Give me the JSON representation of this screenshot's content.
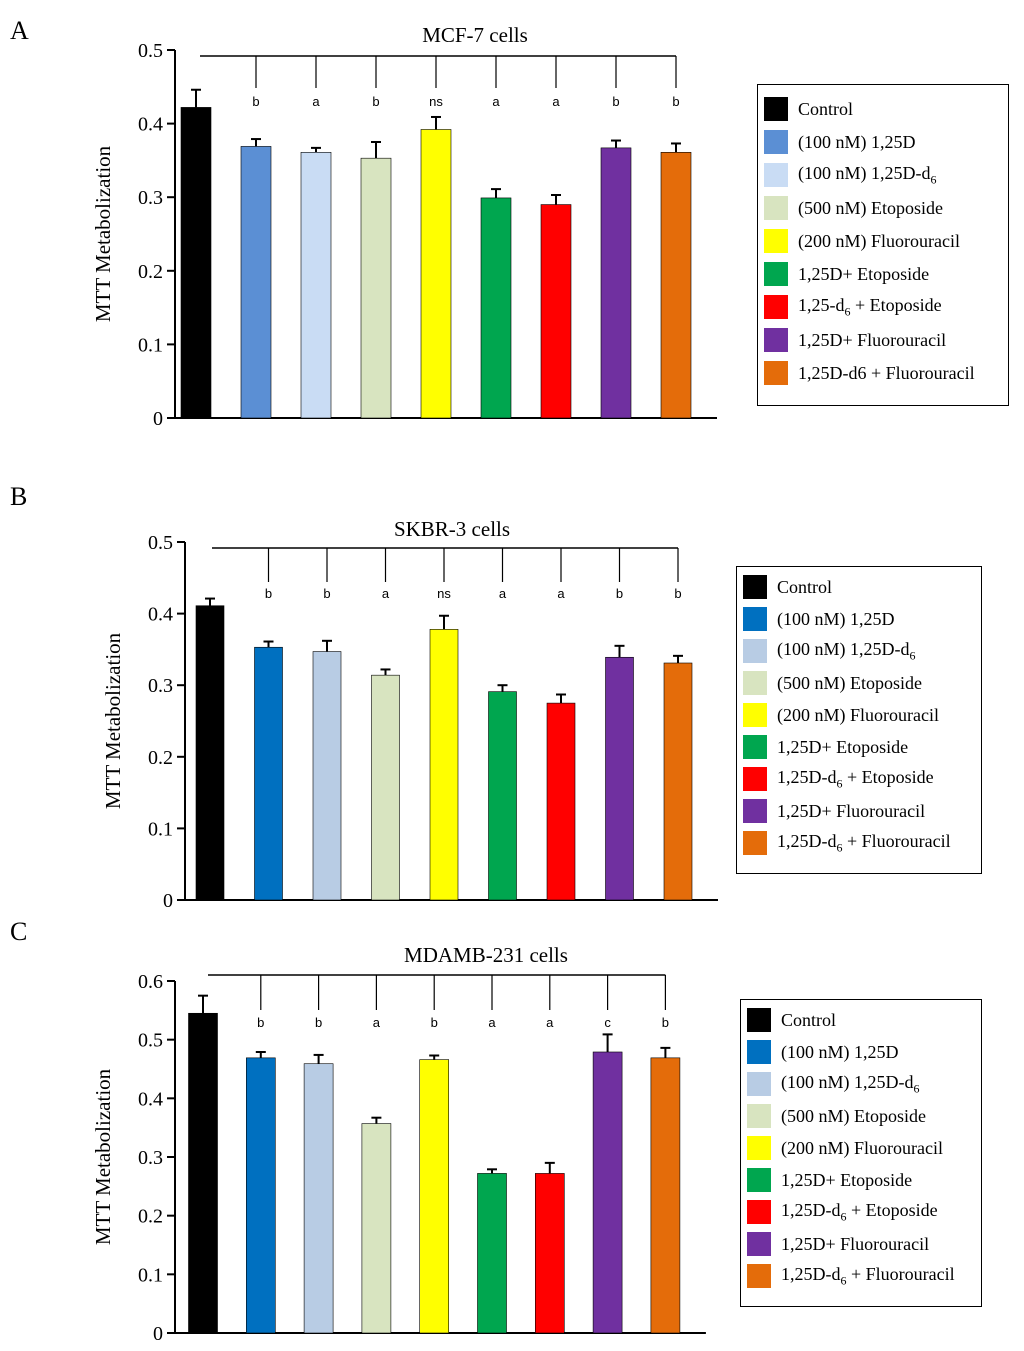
{
  "legend_colors": [
    "#000000",
    "#5B8FD4",
    "#C9DCF4",
    "#D8E4C0",
    "#FFFF00",
    "#00A64F",
    "#FF0000",
    "#7030A0",
    "#E46C0A"
  ],
  "chart_data": [
    {
      "type": "bar",
      "panel": "A",
      "title": "MCF-7 cells",
      "ylabel": "MTT Metabolization",
      "xlabel": "",
      "ylim": [
        0,
        0.5
      ],
      "yticks": [
        "0",
        "0.1",
        "0.2",
        "0.3",
        "0.4",
        "0.5"
      ],
      "categories": [
        "Control",
        "(100 nM) 1,25D",
        "(100 nM) 1,25D-d6",
        "(500 nM) Etoposide",
        "(200 nM) Fluorouracil",
        "1,25D+ Etoposide",
        "1,25-d6 + Etoposide",
        "1,25D+ Fluorouracil",
        "1,25D-d6 + Fluorouracil"
      ],
      "values": [
        0.422,
        0.369,
        0.361,
        0.353,
        0.392,
        0.299,
        0.29,
        0.367,
        0.361
      ],
      "errors": [
        0.024,
        0.01,
        0.006,
        0.022,
        0.017,
        0.012,
        0.013,
        0.01,
        0.012
      ],
      "significance": [
        "",
        "b",
        "a",
        "b",
        "ns",
        "a",
        "a",
        "b",
        "b"
      ],
      "colors": [
        "#000000",
        "#5B8FD4",
        "#C9DCF4",
        "#D8E4C0",
        "#FFFF00",
        "#00A64F",
        "#FF0000",
        "#7030A0",
        "#E46C0A"
      ],
      "legend": [
        {
          "main": "Control",
          "sub": "",
          "tail": ""
        },
        {
          "main": "(100 nM) 1,25D",
          "sub": "",
          "tail": ""
        },
        {
          "main": "(100 nM) 1,25D-d",
          "sub": "6",
          "tail": ""
        },
        {
          "main": "(500 nM) Etoposide",
          "sub": "",
          "tail": ""
        },
        {
          "main": "(200 nM) Fluorouracil",
          "sub": "",
          "tail": ""
        },
        {
          "main": "1,25D+ Etoposide",
          "sub": "",
          "tail": ""
        },
        {
          "main": "1,25-d",
          "sub": "6",
          "tail": " + Etoposide"
        },
        {
          "main": "1,25D+ Fluorouracil",
          "sub": "",
          "tail": ""
        },
        {
          "main": "1,25D-d6 + Fluorouracil",
          "sub": "",
          "tail": ""
        }
      ]
    },
    {
      "type": "bar",
      "panel": "B",
      "title": "SKBR-3 cells",
      "ylabel": "MTT Metabolization",
      "xlabel": "",
      "ylim": [
        0,
        0.5
      ],
      "yticks": [
        "0",
        "0.1",
        "0.2",
        "0.3",
        "0.4",
        "0.5"
      ],
      "categories": [
        "Control",
        "(100 nM) 1,25D",
        "(100 nM) 1,25D-d6",
        "(500 nM) Etoposide",
        "(200 nM) Fluorouracil",
        "1,25D+ Etoposide",
        "1,25D-d6 + Etoposide",
        "1,25D+ Fluorouracil",
        "1,25D-d6 + Fluorouracil"
      ],
      "values": [
        0.411,
        0.353,
        0.347,
        0.314,
        0.378,
        0.291,
        0.275,
        0.339,
        0.331
      ],
      "errors": [
        0.01,
        0.008,
        0.015,
        0.008,
        0.019,
        0.009,
        0.012,
        0.016,
        0.01
      ],
      "significance": [
        "",
        "b",
        "b",
        "a",
        "ns",
        "a",
        "a",
        "b",
        "b"
      ],
      "colors": [
        "#000000",
        "#0070C0",
        "#B8CCE4",
        "#D8E4C0",
        "#FFFF00",
        "#00A64F",
        "#FF0000",
        "#7030A0",
        "#E46C0A"
      ],
      "legend": [
        {
          "main": "Control",
          "sub": "",
          "tail": ""
        },
        {
          "main": "(100 nM) 1,25D",
          "sub": "",
          "tail": ""
        },
        {
          "main": "(100 nM) 1,25D-d",
          "sub": "6",
          "tail": ""
        },
        {
          "main": "(500 nM) Etoposide",
          "sub": "",
          "tail": ""
        },
        {
          "main": "(200 nM) Fluorouracil",
          "sub": "",
          "tail": ""
        },
        {
          "main": "1,25D+ Etoposide",
          "sub": "",
          "tail": ""
        },
        {
          "main": "1,25D-d",
          "sub": "6",
          "tail": " + Etoposide"
        },
        {
          "main": "1,25D+ Fluorouracil",
          "sub": "",
          "tail": ""
        },
        {
          "main": "1,25D-d",
          "sub": "6",
          "tail": " + Fluorouracil"
        }
      ]
    },
    {
      "type": "bar",
      "panel": "C",
      "title": "MDAMB-231 cells",
      "ylabel": "MTT Metabolization",
      "xlabel": "",
      "ylim": [
        0,
        0.6
      ],
      "yticks": [
        "0",
        "0.1",
        "0.2",
        "0.3",
        "0.4",
        "0.5",
        "0.6"
      ],
      "categories": [
        "Control",
        "(100 nM) 1,25D",
        "(100 nM) 1,25D-d6",
        "(500 nM) Etoposide",
        "(200 nM) Fluorouracil",
        "1,25D+ Etoposide",
        "1,25D-d6 + Etoposide",
        "1,25D+ Fluorouracil",
        "1,25D-d6 + Fluorouracil"
      ],
      "values": [
        0.545,
        0.469,
        0.459,
        0.357,
        0.466,
        0.272,
        0.272,
        0.479,
        0.469
      ],
      "errors": [
        0.03,
        0.01,
        0.015,
        0.01,
        0.007,
        0.007,
        0.018,
        0.03,
        0.017
      ],
      "significance": [
        "",
        "b",
        "b",
        "a",
        "b",
        "a",
        "a",
        "c",
        "b"
      ],
      "colors": [
        "#000000",
        "#0070C0",
        "#B8CCE4",
        "#D8E4C0",
        "#FFFF00",
        "#00A64F",
        "#FF0000",
        "#7030A0",
        "#E46C0A"
      ],
      "legend": [
        {
          "main": "Control",
          "sub": "",
          "tail": ""
        },
        {
          "main": "(100 nM) 1,25D",
          "sub": "",
          "tail": ""
        },
        {
          "main": "(100 nM) 1,25D-d",
          "sub": "6",
          "tail": ""
        },
        {
          "main": "(500 nM) Etoposide",
          "sub": "",
          "tail": ""
        },
        {
          "main": "(200 nM) Fluorouracil",
          "sub": "",
          "tail": ""
        },
        {
          "main": "1,25D+ Etoposide",
          "sub": "",
          "tail": ""
        },
        {
          "main": "1,25D-d",
          "sub": "6",
          "tail": " + Etoposide"
        },
        {
          "main": "1,25D+ Fluorouracil",
          "sub": "",
          "tail": ""
        },
        {
          "main": "1,25D-d",
          "sub": "6",
          "tail": " + Fluorouracil"
        }
      ]
    }
  ]
}
